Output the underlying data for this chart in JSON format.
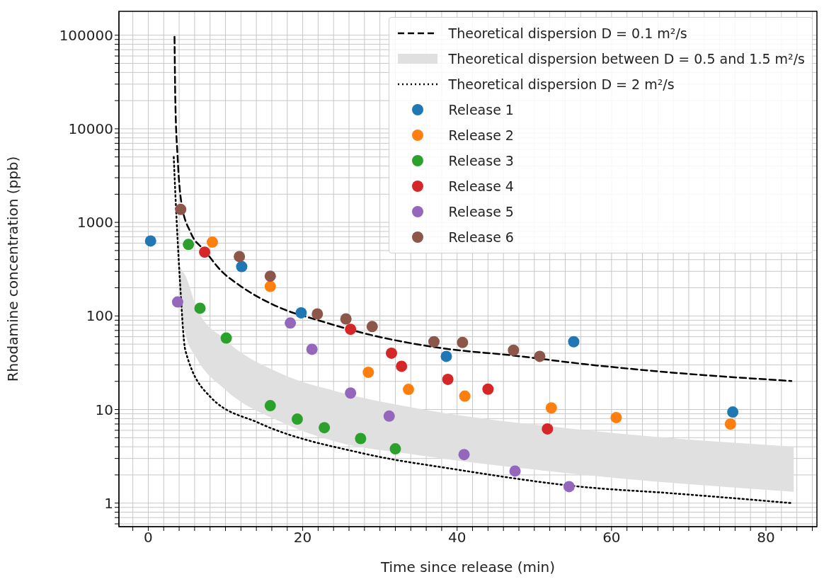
{
  "chart_data": {
    "type": "scatter",
    "xlabel": "Time since release (min)",
    "ylabel": "Rhodamine concentration (ppb)",
    "log": "y",
    "grid": true,
    "legend": "top right",
    "marker": "circle",
    "xlim": [
      -3.8,
      86.6
    ],
    "ylim": [
      0.56,
      180000
    ],
    "xticks": [
      {
        "value": -2,
        "label": null
      },
      0,
      {
        "value": 2,
        "label": null
      },
      {
        "value": 4,
        "label": null
      },
      {
        "value": 6,
        "label": null
      },
      {
        "value": 8,
        "label": null
      },
      {
        "value": 10,
        "label": null
      },
      {
        "value": 12,
        "label": null
      },
      {
        "value": 14,
        "label": null
      },
      {
        "value": 16,
        "label": null
      },
      {
        "value": 18,
        "label": null
      },
      20,
      {
        "value": 22,
        "label": null
      },
      {
        "value": 24,
        "label": null
      },
      {
        "value": 26,
        "label": null
      },
      {
        "value": 28,
        "label": null
      },
      {
        "value": 30,
        "label": null
      },
      {
        "value": 32,
        "label": null
      },
      {
        "value": 34,
        "label": null
      },
      {
        "value": 36,
        "label": null
      },
      {
        "value": 38,
        "label": null
      },
      40,
      {
        "value": 42,
        "label": null
      },
      {
        "value": 44,
        "label": null
      },
      {
        "value": 46,
        "label": null
      },
      {
        "value": 48,
        "label": null
      },
      {
        "value": 50,
        "label": null
      },
      {
        "value": 52,
        "label": null
      },
      {
        "value": 54,
        "label": null
      },
      {
        "value": 56,
        "label": null
      },
      {
        "value": 58,
        "label": null
      },
      60,
      {
        "value": 62,
        "label": null
      },
      {
        "value": 64,
        "label": null
      },
      {
        "value": 66,
        "label": null
      },
      {
        "value": 68,
        "label": null
      },
      {
        "value": 70,
        "label": null
      },
      {
        "value": 72,
        "label": null
      },
      {
        "value": 74,
        "label": null
      },
      {
        "value": 76,
        "label": null
      },
      {
        "value": 78,
        "label": null
      },
      80,
      {
        "value": 82,
        "label": null
      },
      {
        "value": 84,
        "label": null
      },
      {
        "value": 86,
        "label": null
      }
    ],
    "yticks": [
      {
        "value": 0.6,
        "label": null
      },
      {
        "value": 0.7,
        "label": null
      },
      {
        "value": 0.8,
        "label": null
      },
      {
        "value": 0.9,
        "label": null
      },
      1,
      {
        "value": 2,
        "label": null
      },
      {
        "value": 3,
        "label": null
      },
      {
        "value": 4,
        "label": null
      },
      {
        "value": 5,
        "label": null
      },
      {
        "value": 6,
        "label": null
      },
      {
        "value": 7,
        "label": null
      },
      {
        "value": 8,
        "label": null
      },
      {
        "value": 9,
        "label": null
      },
      10,
      {
        "value": 20,
        "label": null
      },
      {
        "value": 30,
        "label": null
      },
      {
        "value": 40,
        "label": null
      },
      {
        "value": 50,
        "label": null
      },
      {
        "value": 60,
        "label": null
      },
      {
        "value": 70,
        "label": null
      },
      {
        "value": 80,
        "label": null
      },
      {
        "value": 90,
        "label": null
      },
      100,
      {
        "value": 200,
        "label": null
      },
      {
        "value": 300,
        "label": null
      },
      {
        "value": 400,
        "label": null
      },
      {
        "value": 500,
        "label": null
      },
      {
        "value": 600,
        "label": null
      },
      {
        "value": 700,
        "label": null
      },
      {
        "value": 800,
        "label": null
      },
      {
        "value": 900,
        "label": null
      },
      1000,
      {
        "value": 2000,
        "label": null
      },
      {
        "value": 3000,
        "label": null
      },
      {
        "value": 4000,
        "label": null
      },
      {
        "value": 5000,
        "label": null
      },
      {
        "value": 6000,
        "label": null
      },
      {
        "value": 7000,
        "label": null
      },
      {
        "value": 8000,
        "label": null
      },
      {
        "value": 9000,
        "label": null
      },
      10000,
      {
        "value": 20000,
        "label": null
      },
      {
        "value": 30000,
        "label": null
      },
      {
        "value": 40000,
        "label": null
      },
      {
        "value": 50000,
        "label": null
      },
      {
        "value": 60000,
        "label": null
      },
      {
        "value": 70000,
        "label": null
      },
      {
        "value": 80000,
        "label": null
      },
      {
        "value": 90000,
        "label": null
      },
      100000
    ],
    "series": [
      {
        "name": "Theoretical dispersion D = 0.1 m²/s",
        "type": "line",
        "color": "#000000",
        "line_style": "dashed",
        "marker": "none",
        "x": [
          3.4,
          3.5,
          3.8,
          4.3,
          5.5,
          7.3,
          9.5,
          11.8,
          17.3,
          22,
          27.4,
          38.2,
          47,
          56.6,
          67.4,
          83.3
        ],
        "values": [
          96000,
          21000,
          5000,
          1600,
          775,
          500,
          300,
          213,
          120,
          90,
          67,
          45,
          38,
          30.5,
          25,
          20.2
        ]
      },
      {
        "name": "Theoretical dispersion between D = 0.5 and 1.5 m²/s",
        "type": "line",
        "color": "#e0e0e0",
        "marker": "none",
        "x": [
          4.1,
          4.8,
          6.3,
          9.9,
          17.3,
          24.4,
          34.5,
          56.6,
          83.6
        ],
        "values": [
          null,
          null,
          null,
          null,
          null,
          null,
          null,
          null,
          null
        ],
        "lower": [
          150,
          65,
          35,
          16.5,
          7.3,
          4.5,
          3.3,
          2.0,
          1.32
        ],
        "upper": [
          330,
          270,
          120,
          56,
          24,
          15.6,
          10.4,
          6.0,
          4.0
        ]
      },
      {
        "name": "Theoretical dispersion D = 2 m²/s",
        "type": "line",
        "color": "#000000",
        "line_style": "dotted",
        "marker": "none",
        "x": [
          3.3,
          3.5,
          4.1,
          4.8,
          8.1,
          14.3,
          27.8,
          39.7,
          56.6,
          67.4,
          83.3
        ],
        "values": [
          5000,
          2100,
          240,
          43,
          13.5,
          7.2,
          3.4,
          2.3,
          1.48,
          1.28,
          1.0
        ]
      },
      {
        "name": "Release 1",
        "color": "#1f77b4",
        "x": [
          0.3,
          12.1,
          19.8,
          38.6,
          55.1,
          75.7
        ],
        "values": [
          633,
          337,
          108,
          37,
          53,
          9.4
        ]
      },
      {
        "name": "Release 2",
        "color": "#ff7f0e",
        "x": [
          8.3,
          15.8,
          28.5,
          33.7,
          41.0,
          52.2,
          60.6,
          75.4
        ],
        "values": [
          615,
          207,
          25,
          16.4,
          13.9,
          10.4,
          8.2,
          7.0
        ]
      },
      {
        "name": "Release 3",
        "color": "#2ca02c",
        "x": [
          5.2,
          6.7,
          10.1,
          15.8,
          19.3,
          22.8,
          27.5,
          32.0
        ],
        "values": [
          581,
          121,
          58,
          11.0,
          7.9,
          6.4,
          4.9,
          3.8
        ]
      },
      {
        "name": "Release 4",
        "color": "#d62728",
        "x": [
          7.3,
          26.2,
          31.5,
          32.8,
          38.8,
          44.0,
          51.7
        ],
        "values": [
          481,
          72,
          40,
          29,
          21,
          16.5,
          6.2
        ]
      },
      {
        "name": "Release 5",
        "color": "#9467bd",
        "x": [
          3.8,
          18.4,
          21.2,
          26.2,
          31.2,
          40.9,
          47.5,
          54.5
        ],
        "values": [
          141,
          84,
          44,
          15,
          8.5,
          3.3,
          2.2,
          1.5
        ]
      },
      {
        "name": "Release 6",
        "color": "#8c564b",
        "x": [
          4.2,
          11.8,
          15.8,
          21.9,
          25.6,
          29.0,
          37.0,
          40.7,
          47.3,
          50.7
        ],
        "values": [
          1375,
          431,
          266,
          105,
          93,
          77,
          53,
          52,
          43,
          37
        ]
      }
    ]
  }
}
